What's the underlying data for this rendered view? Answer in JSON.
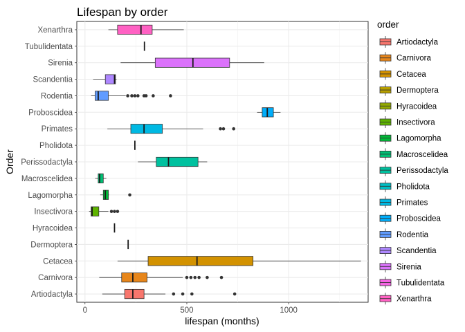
{
  "chart_data": {
    "type": "boxplot",
    "title": "Lifespan by order",
    "xlabel": "lifespan (months)",
    "ylabel": "Order",
    "xlim": [
      -40,
      1390
    ],
    "x_ticks": [
      0,
      500,
      1000
    ],
    "grid": true,
    "legend": {
      "title": "order",
      "placement": "right"
    },
    "categories": [
      {
        "name": "Artiodactyla",
        "color": "#F8766D",
        "min": 85,
        "q1": 195,
        "median": 235,
        "q3": 290,
        "max": 395,
        "outliers": [
          435,
          480,
          525,
          735
        ]
      },
      {
        "name": "Carnivora",
        "color": "#E7861B",
        "min": 70,
        "q1": 180,
        "median": 235,
        "q3": 305,
        "max": 480,
        "outliers": [
          500,
          520,
          540,
          560,
          600,
          670
        ]
      },
      {
        "name": "Cetacea",
        "color": "#D39200",
        "min": 160,
        "q1": 310,
        "median": 550,
        "q3": 825,
        "max": 1355,
        "outliers": []
      },
      {
        "name": "Dermoptera",
        "color": "#B79F00",
        "min": 212,
        "q1": 212,
        "median": 212,
        "q3": 212,
        "max": 212,
        "outliers": []
      },
      {
        "name": "Hyracoidea",
        "color": "#93AA00",
        "min": 145,
        "q1": 145,
        "median": 145,
        "q3": 145,
        "max": 145,
        "outliers": []
      },
      {
        "name": "Insectivora",
        "color": "#5EB300",
        "min": 20,
        "q1": 30,
        "median": 35,
        "q3": 68,
        "max": 115,
        "outliers": [
          130,
          145,
          160
        ]
      },
      {
        "name": "Lagomorpha",
        "color": "#00BA38",
        "min": 75,
        "q1": 90,
        "median": 100,
        "q3": 115,
        "max": 118,
        "outliers": [
          220
        ]
      },
      {
        "name": "Macroscelidea",
        "color": "#00BF74",
        "min": 50,
        "q1": 65,
        "median": 72,
        "q3": 90,
        "max": 105,
        "outliers": []
      },
      {
        "name": "Perissodactyla",
        "color": "#00C19F",
        "min": 260,
        "q1": 350,
        "median": 410,
        "q3": 555,
        "max": 600,
        "outliers": []
      },
      {
        "name": "Pholidota",
        "color": "#00BFC4",
        "min": 245,
        "q1": 245,
        "median": 245,
        "q3": 245,
        "max": 245,
        "outliers": []
      },
      {
        "name": "Primates",
        "color": "#00B9E3",
        "min": 110,
        "q1": 225,
        "median": 290,
        "q3": 380,
        "max": 580,
        "outliers": [
          665,
          680,
          730
        ]
      },
      {
        "name": "Proboscidea",
        "color": "#00ADFA",
        "min": 845,
        "q1": 870,
        "median": 895,
        "q3": 925,
        "max": 960,
        "outliers": []
      },
      {
        "name": "Rodentia",
        "color": "#619CFF",
        "min": 30,
        "q1": 50,
        "median": 65,
        "q3": 115,
        "max": 200,
        "outliers": [
          210,
          230,
          245,
          260,
          290,
          300,
          335,
          420
        ]
      },
      {
        "name": "Scandentia",
        "color": "#AE87FF",
        "min": 40,
        "q1": 100,
        "median": 145,
        "q3": 150,
        "max": 155,
        "outliers": []
      },
      {
        "name": "Sirenia",
        "color": "#DB72FB",
        "min": 175,
        "q1": 345,
        "median": 530,
        "q3": 710,
        "max": 880,
        "outliers": []
      },
      {
        "name": "Tubulidentata",
        "color": "#F564E3",
        "min": 292,
        "q1": 292,
        "median": 292,
        "q3": 292,
        "max": 292,
        "outliers": []
      },
      {
        "name": "Xenarthra",
        "color": "#FF61C3",
        "min": 115,
        "q1": 160,
        "median": 275,
        "q3": 330,
        "max": 485,
        "outliers": []
      }
    ]
  }
}
